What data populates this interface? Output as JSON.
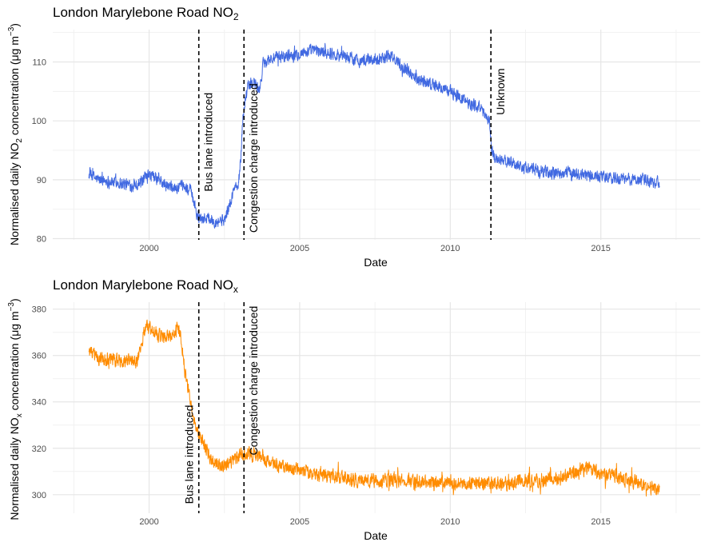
{
  "chart_data": [
    {
      "type": "line",
      "title": "London Marylebone Road NO",
      "title_sub": "2",
      "xlabel": "Date",
      "ylabel_parts": [
        "Normalised daily NO",
        "2",
        " concentration (μg m",
        "−3",
        ")"
      ],
      "xlim": [
        1996.8,
        2018.3
      ],
      "ylim": [
        79.8,
        115.5
      ],
      "x_ticks": [
        2000,
        2005,
        2010,
        2015
      ],
      "x_tick_labels": [
        "2000",
        "2005",
        "2010",
        "2015"
      ],
      "y_ticks": [
        80,
        90,
        100,
        110
      ],
      "y_tick_labels": [
        "80",
        "90",
        "100",
        "110"
      ],
      "grid": true,
      "series": [
        {
          "color": "#4169E1",
          "x": [
            1998.0,
            1998.3,
            1998.6,
            1999.0,
            1999.4,
            1999.7,
            2000.0,
            2000.3,
            2000.6,
            2000.9,
            2001.2,
            2001.4,
            2001.55,
            2001.65,
            2001.9,
            2002.2,
            2002.5,
            2002.7,
            2002.85,
            2002.95,
            2003.05,
            2003.1,
            2003.2,
            2003.3,
            2003.5,
            2003.65,
            2003.75,
            2003.8,
            2004.0,
            2004.5,
            2005.0,
            2005.5,
            2006.0,
            2006.5,
            2007.0,
            2007.5,
            2008.0,
            2008.4,
            2008.7,
            2009.0,
            2009.5,
            2010.0,
            2010.5,
            2010.9,
            2011.1,
            2011.3,
            2011.38,
            2011.5,
            2012.0,
            2012.5,
            2013.0,
            2013.5,
            2014.0,
            2014.5,
            2015.0,
            2015.5,
            2016.0,
            2016.5,
            2016.95
          ],
          "y": [
            91.0,
            90.0,
            89.8,
            89.5,
            89.0,
            89.5,
            90.8,
            90.0,
            88.8,
            88.5,
            88.8,
            88.0,
            84.5,
            83.5,
            83.6,
            83.0,
            83.2,
            86.0,
            89.0,
            88.5,
            94.0,
            100.0,
            104.0,
            106.0,
            106.5,
            105.0,
            108.0,
            110.0,
            110.5,
            111.0,
            111.5,
            112.0,
            111.5,
            111.0,
            110.2,
            110.5,
            111.0,
            109.5,
            108.0,
            107.0,
            106.0,
            105.0,
            103.5,
            102.5,
            101.5,
            100.0,
            95.0,
            93.5,
            93.0,
            92.0,
            91.5,
            91.0,
            91.2,
            90.8,
            90.5,
            90.2,
            90.0,
            90.0,
            89.5
          ],
          "noise": 0.9
        }
      ],
      "annotations": [
        {
          "x": 2001.65,
          "label": "Bus lane introduced",
          "label_pos": 88.0,
          "side": "right"
        },
        {
          "x": 2003.15,
          "label": "Congestion charge introduced",
          "label_pos": 81.0,
          "side": "right"
        },
        {
          "x": 2011.35,
          "label": "Unknown",
          "label_pos": 101.0,
          "side": "right"
        }
      ]
    },
    {
      "type": "line",
      "title": "London Marylebone Road NO",
      "title_sub": "x",
      "xlabel": "Date",
      "ylabel_parts": [
        "Normalised daily NO",
        "x",
        " concentration (μg m",
        "−3",
        ")"
      ],
      "xlim": [
        1996.8,
        2018.3
      ],
      "ylim": [
        292,
        383
      ],
      "x_ticks": [
        2000,
        2005,
        2010,
        2015
      ],
      "x_tick_labels": [
        "2000",
        "2005",
        "2010",
        "2015"
      ],
      "y_ticks": [
        300,
        320,
        340,
        360,
        380
      ],
      "y_tick_labels": [
        "300",
        "320",
        "340",
        "360",
        "380"
      ],
      "grid": true,
      "series": [
        {
          "color": "#FF8C00",
          "x": [
            1998.0,
            1998.3,
            1998.7,
            1999.0,
            1999.3,
            1999.6,
            1999.75,
            1999.9,
            2000.1,
            2000.4,
            2000.7,
            2000.95,
            2001.05,
            2001.2,
            2001.4,
            2001.6,
            2001.8,
            2002.0,
            2002.3,
            2002.6,
            2002.9,
            2003.2,
            2003.5,
            2004.0,
            2004.5,
            2005.0,
            2006.0,
            2007.0,
            2008.0,
            2009.0,
            2010.0,
            2011.0,
            2012.0,
            2013.0,
            2013.6,
            2014.2,
            2014.6,
            2015.0,
            2015.5,
            2016.0,
            2016.5,
            2016.95
          ],
          "y": [
            362.0,
            359.0,
            358.0,
            357.5,
            358.0,
            357.0,
            366.0,
            373.0,
            371.0,
            368.0,
            369.0,
            372.0,
            368.0,
            352.0,
            338.0,
            328.0,
            322.0,
            316.0,
            313.0,
            313.0,
            316.0,
            318.0,
            317.0,
            314.0,
            312.0,
            310.0,
            308.0,
            306.0,
            306.0,
            306.0,
            305.0,
            305.0,
            305.0,
            306.5,
            307.0,
            310.0,
            312.0,
            309.0,
            308.0,
            306.0,
            304.0,
            302.0
          ],
          "noise": 2.6
        }
      ],
      "annotations": [
        {
          "x": 2001.65,
          "label": "Bus lane introduced",
          "label_pos": 296.0,
          "side": "left"
        },
        {
          "x": 2003.15,
          "label": "Congestion charge introduced",
          "label_pos": 317.0,
          "side": "right"
        }
      ]
    }
  ]
}
